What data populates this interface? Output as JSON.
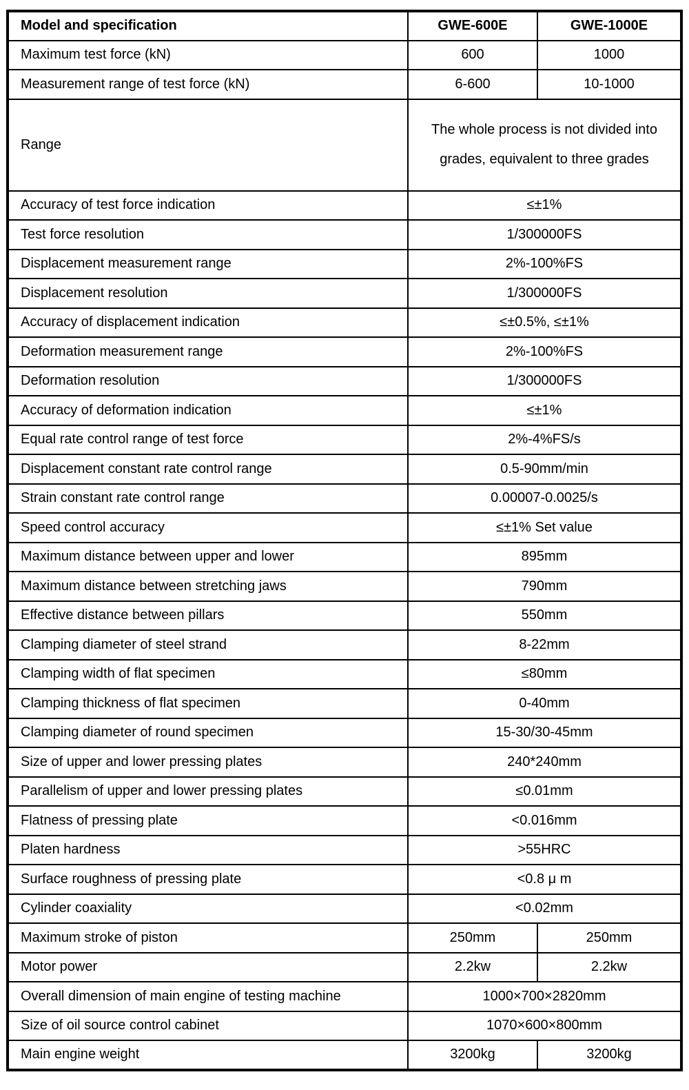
{
  "page": {
    "background_color": "#ffffff",
    "border_color": "#000000",
    "text_color": "#000000"
  },
  "table": {
    "header": {
      "label": "Model and specification",
      "model1": "GWE-600E",
      "model2": "GWE-1000E"
    },
    "rows": [
      {
        "label": "Maximum test force (kN)",
        "values": [
          "600",
          "1000"
        ]
      },
      {
        "label": "Measurement range of test force (kN)",
        "values": [
          "6-600",
          "10-1000"
        ]
      },
      {
        "label": "Range",
        "value": "The whole process is not divided into grades, equivalent to three grades"
      },
      {
        "label": "Accuracy of test force indication",
        "value": "≤±1%"
      },
      {
        "label": "Test force resolution",
        "value": "1/300000FS"
      },
      {
        "label": "Displacement measurement range",
        "value": "2%-100%FS"
      },
      {
        "label": "Displacement resolution",
        "value": "1/300000FS"
      },
      {
        "label": "Accuracy of displacement indication",
        "value": "≤±0.5%, ≤±1%"
      },
      {
        "label": "Deformation measurement range",
        "value": "2%-100%FS"
      },
      {
        "label": "Deformation resolution",
        "value": "1/300000FS"
      },
      {
        "label": "Accuracy of deformation indication",
        "value": "≤±1%"
      },
      {
        "label": "Equal rate control range of test force",
        "value": "2%-4%FS/s"
      },
      {
        "label": "Displacement constant rate control range",
        "value": "0.5-90mm/min"
      },
      {
        "label": "Strain constant rate control range",
        "value": "0.00007-0.0025/s"
      },
      {
        "label": "Speed control accuracy",
        "value": "≤±1% Set value"
      },
      {
        "label": "Maximum distance between upper and lower",
        "value": "895mm"
      },
      {
        "label": "Maximum distance between stretching jaws",
        "value": "790mm"
      },
      {
        "label": "Effective distance between pillars",
        "value": "550mm"
      },
      {
        "label": "Clamping diameter of steel strand",
        "value": "8-22mm"
      },
      {
        "label": "Clamping width of flat specimen",
        "value": "≤80mm"
      },
      {
        "label": "Clamping thickness of flat specimen",
        "value": "0-40mm"
      },
      {
        "label": "Clamping diameter of round specimen",
        "value": "15-30/30-45mm"
      },
      {
        "label": "Size of upper and lower pressing plates",
        "value": "240*240mm"
      },
      {
        "label": "Parallelism of upper and lower pressing plates",
        "value": "≤0.01mm"
      },
      {
        "label": "Flatness of pressing plate",
        "value": "<0.016mm"
      },
      {
        "label": "Platen hardness",
        "value": ">55HRC"
      },
      {
        "label": "Surface roughness of pressing plate",
        "value": "<0.8 μ m"
      },
      {
        "label": "Cylinder coaxiality",
        "value": "<0.02mm"
      },
      {
        "label": "Maximum stroke of piston",
        "values": [
          "250mm",
          "250mm"
        ]
      },
      {
        "label": "Motor power",
        "values": [
          "2.2kw",
          "2.2kw"
        ]
      },
      {
        "label": "Overall dimension of main engine of testing machine",
        "value": "1000×700×2820mm"
      },
      {
        "label": "Size of oil source control cabinet",
        "value": "1070×600×800mm"
      },
      {
        "label": "Main engine weight",
        "values": [
          "3200kg",
          "3200kg"
        ]
      }
    ]
  }
}
